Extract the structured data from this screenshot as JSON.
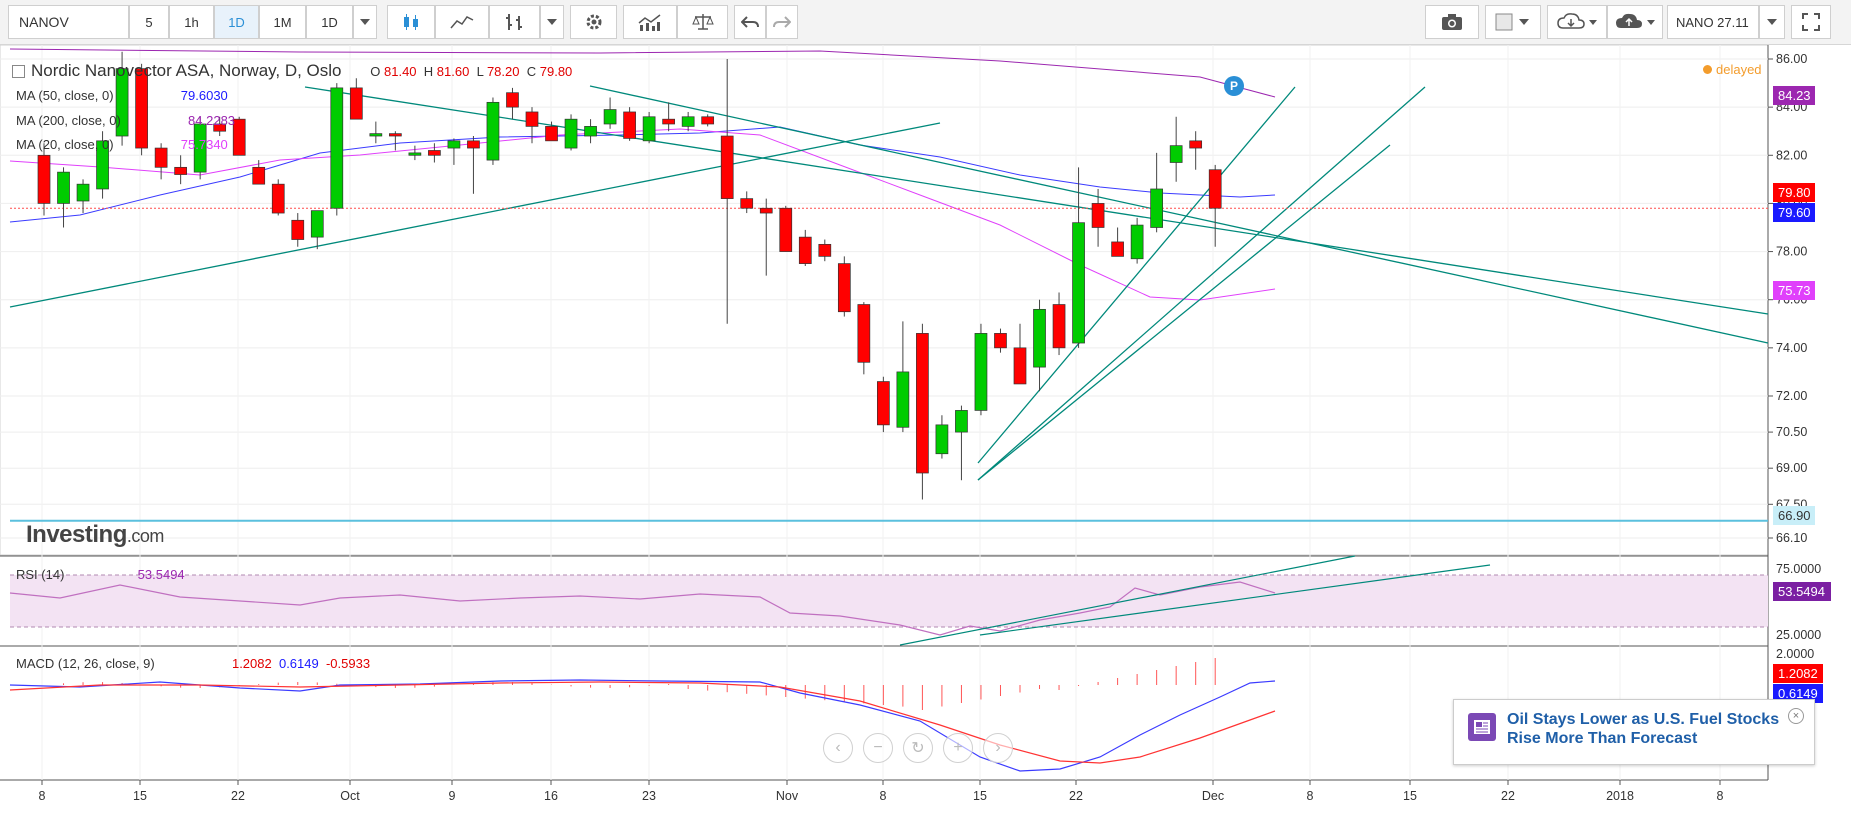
{
  "toolbar": {
    "symbol": "NANOV",
    "intervals": [
      "5",
      "1h",
      "1D",
      "1M",
      "1D"
    ],
    "active_interval_index": 2,
    "quote": "NANO 27.11"
  },
  "chart": {
    "title": "Nordic Nanovector ASA, Norway, D, Oslo",
    "ohlc": {
      "o_label": "O",
      "o": "81.40",
      "h_label": "H",
      "h": "81.60",
      "l_label": "L",
      "l": "78.20",
      "c_label": "C",
      "c": "79.80"
    },
    "ma50": {
      "label": "MA (50, close, 0)",
      "value": "79.6030",
      "color": "#1a1aff"
    },
    "ma200": {
      "label": "MA (200, close, 0)",
      "value": "84.2283",
      "color": "#9c27b0"
    },
    "ma20": {
      "label": "MA (20, close, 0)",
      "value": "75.7340",
      "color": "#e040fb"
    },
    "delayed": "delayed",
    "logo_text": "Investing",
    "logo_suffix": ".com",
    "marker": "P",
    "price_badges": {
      "ma200": "84.23",
      "last": "79.80",
      "ma50": "79.60",
      "ma20": "75.73",
      "hline": "66.90"
    },
    "y_ticks": [
      "86.00",
      "84.00",
      "82.00",
      "80.00",
      "78.00",
      "76.00",
      "74.00",
      "72.00",
      "70.50",
      "69.00",
      "67.50",
      "66.10"
    ],
    "x_ticks": [
      "8",
      "15",
      "22",
      "Oct",
      "9",
      "16",
      "23",
      "Nov",
      "8",
      "15",
      "22",
      "Dec",
      "8",
      "15",
      "22",
      "2018",
      "8"
    ]
  },
  "rsi": {
    "label": "RSI (14)",
    "value": "53.5494",
    "ticks": [
      "75.0000",
      "25.0000"
    ],
    "badge": "53.5494"
  },
  "macd": {
    "label": "MACD (12, 26, close, 9)",
    "v1": "1.2082",
    "v2": "0.6149",
    "v3": "-0.5933",
    "ticks": [
      "2.0000",
      "0"
    ],
    "badge1": "1.2082",
    "badge2": "0.6149"
  },
  "news": {
    "headline": "Oil Stays Lower as U.S. Fuel Stocks Rise More Than Forecast"
  },
  "colors": {
    "up": "#00cc00",
    "down": "#ff0000",
    "trend": "#00897b",
    "hline": "#5bc0de"
  },
  "chart_data": {
    "type": "candlestick",
    "ylim": [
      66.1,
      86.0
    ],
    "candles": [
      {
        "o": 82,
        "h": 82.5,
        "l": 79.5,
        "c": 80
      },
      {
        "o": 80,
        "h": 81.5,
        "l": 79,
        "c": 81.3
      },
      {
        "o": 80.1,
        "h": 81,
        "l": 79.6,
        "c": 80.8
      },
      {
        "o": 80.6,
        "h": 83,
        "l": 80.2,
        "c": 82.6
      },
      {
        "o": 82.8,
        "h": 86.3,
        "l": 82.4,
        "c": 85.6
      },
      {
        "o": 85.6,
        "h": 85.8,
        "l": 82,
        "c": 82.3
      },
      {
        "o": 82.3,
        "h": 82.5,
        "l": 81,
        "c": 81.5
      },
      {
        "o": 81.5,
        "h": 82,
        "l": 80.8,
        "c": 81.2
      },
      {
        "o": 81.3,
        "h": 83.6,
        "l": 81,
        "c": 83.3
      },
      {
        "o": 83.3,
        "h": 83.6,
        "l": 82.8,
        "c": 83
      },
      {
        "o": 83.5,
        "h": 83.6,
        "l": 82,
        "c": 82
      },
      {
        "o": 81.5,
        "h": 81.8,
        "l": 80.8,
        "c": 80.8
      },
      {
        "o": 80.8,
        "h": 81,
        "l": 79.5,
        "c": 79.6
      },
      {
        "o": 79.3,
        "h": 79.6,
        "l": 78.2,
        "c": 78.5
      },
      {
        "o": 78.6,
        "h": 79.7,
        "l": 78.1,
        "c": 79.7
      },
      {
        "o": 79.8,
        "h": 85,
        "l": 79.5,
        "c": 84.8
      },
      {
        "o": 84.8,
        "h": 85.2,
        "l": 83.5,
        "c": 83.5
      },
      {
        "o": 82.8,
        "h": 83.4,
        "l": 82.5,
        "c": 82.9
      },
      {
        "o": 82.9,
        "h": 83,
        "l": 82.2,
        "c": 82.8
      },
      {
        "o": 82,
        "h": 82.4,
        "l": 81.8,
        "c": 82.1
      },
      {
        "o": 82.2,
        "h": 82.5,
        "l": 81.7,
        "c": 82
      },
      {
        "o": 82.3,
        "h": 82.7,
        "l": 81.6,
        "c": 82.6
      },
      {
        "o": 82.6,
        "h": 82.8,
        "l": 80.4,
        "c": 82.3
      },
      {
        "o": 81.8,
        "h": 84.4,
        "l": 81.6,
        "c": 84.2
      },
      {
        "o": 84.6,
        "h": 84.8,
        "l": 83.5,
        "c": 84
      },
      {
        "o": 83.8,
        "h": 84,
        "l": 82.5,
        "c": 83.2
      },
      {
        "o": 83.2,
        "h": 83.4,
        "l": 82.6,
        "c": 82.6
      },
      {
        "o": 82.3,
        "h": 83.7,
        "l": 82.2,
        "c": 83.5
      },
      {
        "o": 82.8,
        "h": 83.5,
        "l": 82.5,
        "c": 83.2
      },
      {
        "o": 83.3,
        "h": 84.4,
        "l": 83.1,
        "c": 83.9
      },
      {
        "o": 83.8,
        "h": 84,
        "l": 82.6,
        "c": 82.7
      },
      {
        "o": 82.6,
        "h": 83.8,
        "l": 82.5,
        "c": 83.6
      },
      {
        "o": 83.5,
        "h": 84.2,
        "l": 83,
        "c": 83.3
      },
      {
        "o": 83.2,
        "h": 83.8,
        "l": 83,
        "c": 83.6
      },
      {
        "o": 83.6,
        "h": 83.7,
        "l": 83.2,
        "c": 83.3
      },
      {
        "o": 82.8,
        "h": 86,
        "l": 75,
        "c": 80.2
      },
      {
        "o": 80.2,
        "h": 80.5,
        "l": 79.6,
        "c": 79.8
      },
      {
        "o": 79.8,
        "h": 80.2,
        "l": 77,
        "c": 79.6
      },
      {
        "o": 79.8,
        "h": 79.9,
        "l": 78,
        "c": 78
      },
      {
        "o": 78.6,
        "h": 78.9,
        "l": 77.4,
        "c": 77.5
      },
      {
        "o": 78.3,
        "h": 78.5,
        "l": 77.6,
        "c": 77.8
      },
      {
        "o": 77.5,
        "h": 77.8,
        "l": 75.3,
        "c": 75.5
      },
      {
        "o": 75.8,
        "h": 75.9,
        "l": 72.9,
        "c": 73.4
      },
      {
        "o": 72.6,
        "h": 72.8,
        "l": 70.5,
        "c": 70.8
      },
      {
        "o": 70.7,
        "h": 75.1,
        "l": 70.5,
        "c": 73
      },
      {
        "o": 74.6,
        "h": 75,
        "l": 67.7,
        "c": 68.8
      },
      {
        "o": 69.6,
        "h": 71.2,
        "l": 69.4,
        "c": 70.8
      },
      {
        "o": 70.5,
        "h": 71.6,
        "l": 68.5,
        "c": 71.4
      },
      {
        "o": 71.4,
        "h": 75,
        "l": 71.2,
        "c": 74.6
      },
      {
        "o": 74.6,
        "h": 74.8,
        "l": 73.8,
        "c": 74
      },
      {
        "o": 74,
        "h": 75,
        "l": 72.5,
        "c": 72.5
      },
      {
        "o": 73.2,
        "h": 76,
        "l": 72.2,
        "c": 75.6
      },
      {
        "o": 75.8,
        "h": 76.3,
        "l": 73.7,
        "c": 74
      },
      {
        "o": 74.2,
        "h": 81.5,
        "l": 74,
        "c": 79.2
      },
      {
        "o": 80,
        "h": 80.6,
        "l": 78.2,
        "c": 79
      },
      {
        "o": 78.4,
        "h": 79,
        "l": 77.8,
        "c": 77.8
      },
      {
        "o": 77.7,
        "h": 79.4,
        "l": 77.5,
        "c": 79.1
      },
      {
        "o": 79,
        "h": 82.1,
        "l": 78.8,
        "c": 80.6
      },
      {
        "o": 81.7,
        "h": 83.6,
        "l": 80.9,
        "c": 82.4
      },
      {
        "o": 82.6,
        "h": 83,
        "l": 81.4,
        "c": 82.3
      },
      {
        "o": 81.4,
        "h": 81.6,
        "l": 78.2,
        "c": 79.8
      }
    ],
    "hline": 66.9,
    "last": 79.8
  }
}
